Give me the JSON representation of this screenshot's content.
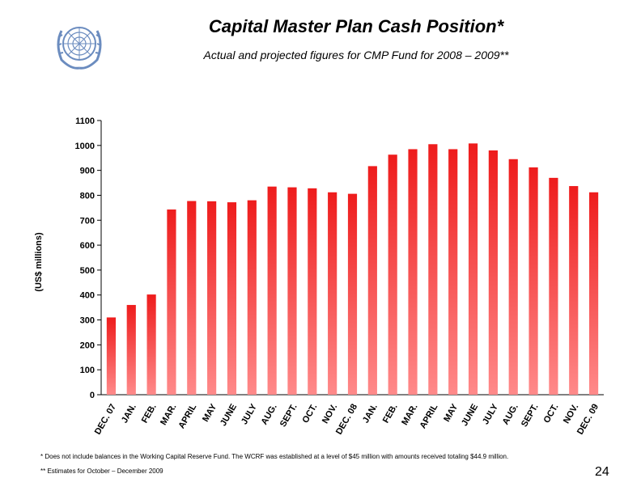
{
  "header": {
    "title": "Capital Master Plan Cash Position*",
    "subtitle": "Actual and projected figures for CMP Fund for 2008 – 2009**"
  },
  "footnotes": {
    "note1": "* Does not include balances in the Working Capital Reserve Fund. The WCRF was established at a level of $45 million with amounts received totaling $44.9 million.",
    "note2": "** Estimates for October – December 2009",
    "page_number": "24"
  },
  "colors": {
    "bar_top": "#ee1c1c",
    "bar_bottom": "#ff8a8a",
    "logo": "#6b8cbf"
  },
  "chart_data": {
    "type": "bar",
    "title": "",
    "ylabel": "(US$ millions)",
    "xlabel": "",
    "ylim": [
      0,
      1100
    ],
    "yticks": [
      0,
      100,
      200,
      300,
      400,
      500,
      600,
      700,
      800,
      900,
      1000,
      1100
    ],
    "grid": false,
    "categories": [
      "DEC. 07",
      "JAN.",
      "FEB.",
      "MAR.",
      "APRIL",
      "MAY",
      "JUNE",
      "JULY",
      "AUG.",
      "SEPT.",
      "OCT.",
      "NOV.",
      "DEC. 08",
      "JAN.",
      "FEB.",
      "MAR.",
      "APRIL",
      "MAY",
      "JUNE",
      "JULY",
      "AUG.",
      "SEPT.",
      "OCT.",
      "NOV.",
      "DEC. 09"
    ],
    "values": [
      310,
      360,
      402,
      743,
      777,
      776,
      772,
      780,
      835,
      832,
      828,
      812,
      806,
      917,
      963,
      985,
      1005,
      985,
      1008,
      980,
      945,
      912,
      870,
      837,
      812
    ]
  }
}
